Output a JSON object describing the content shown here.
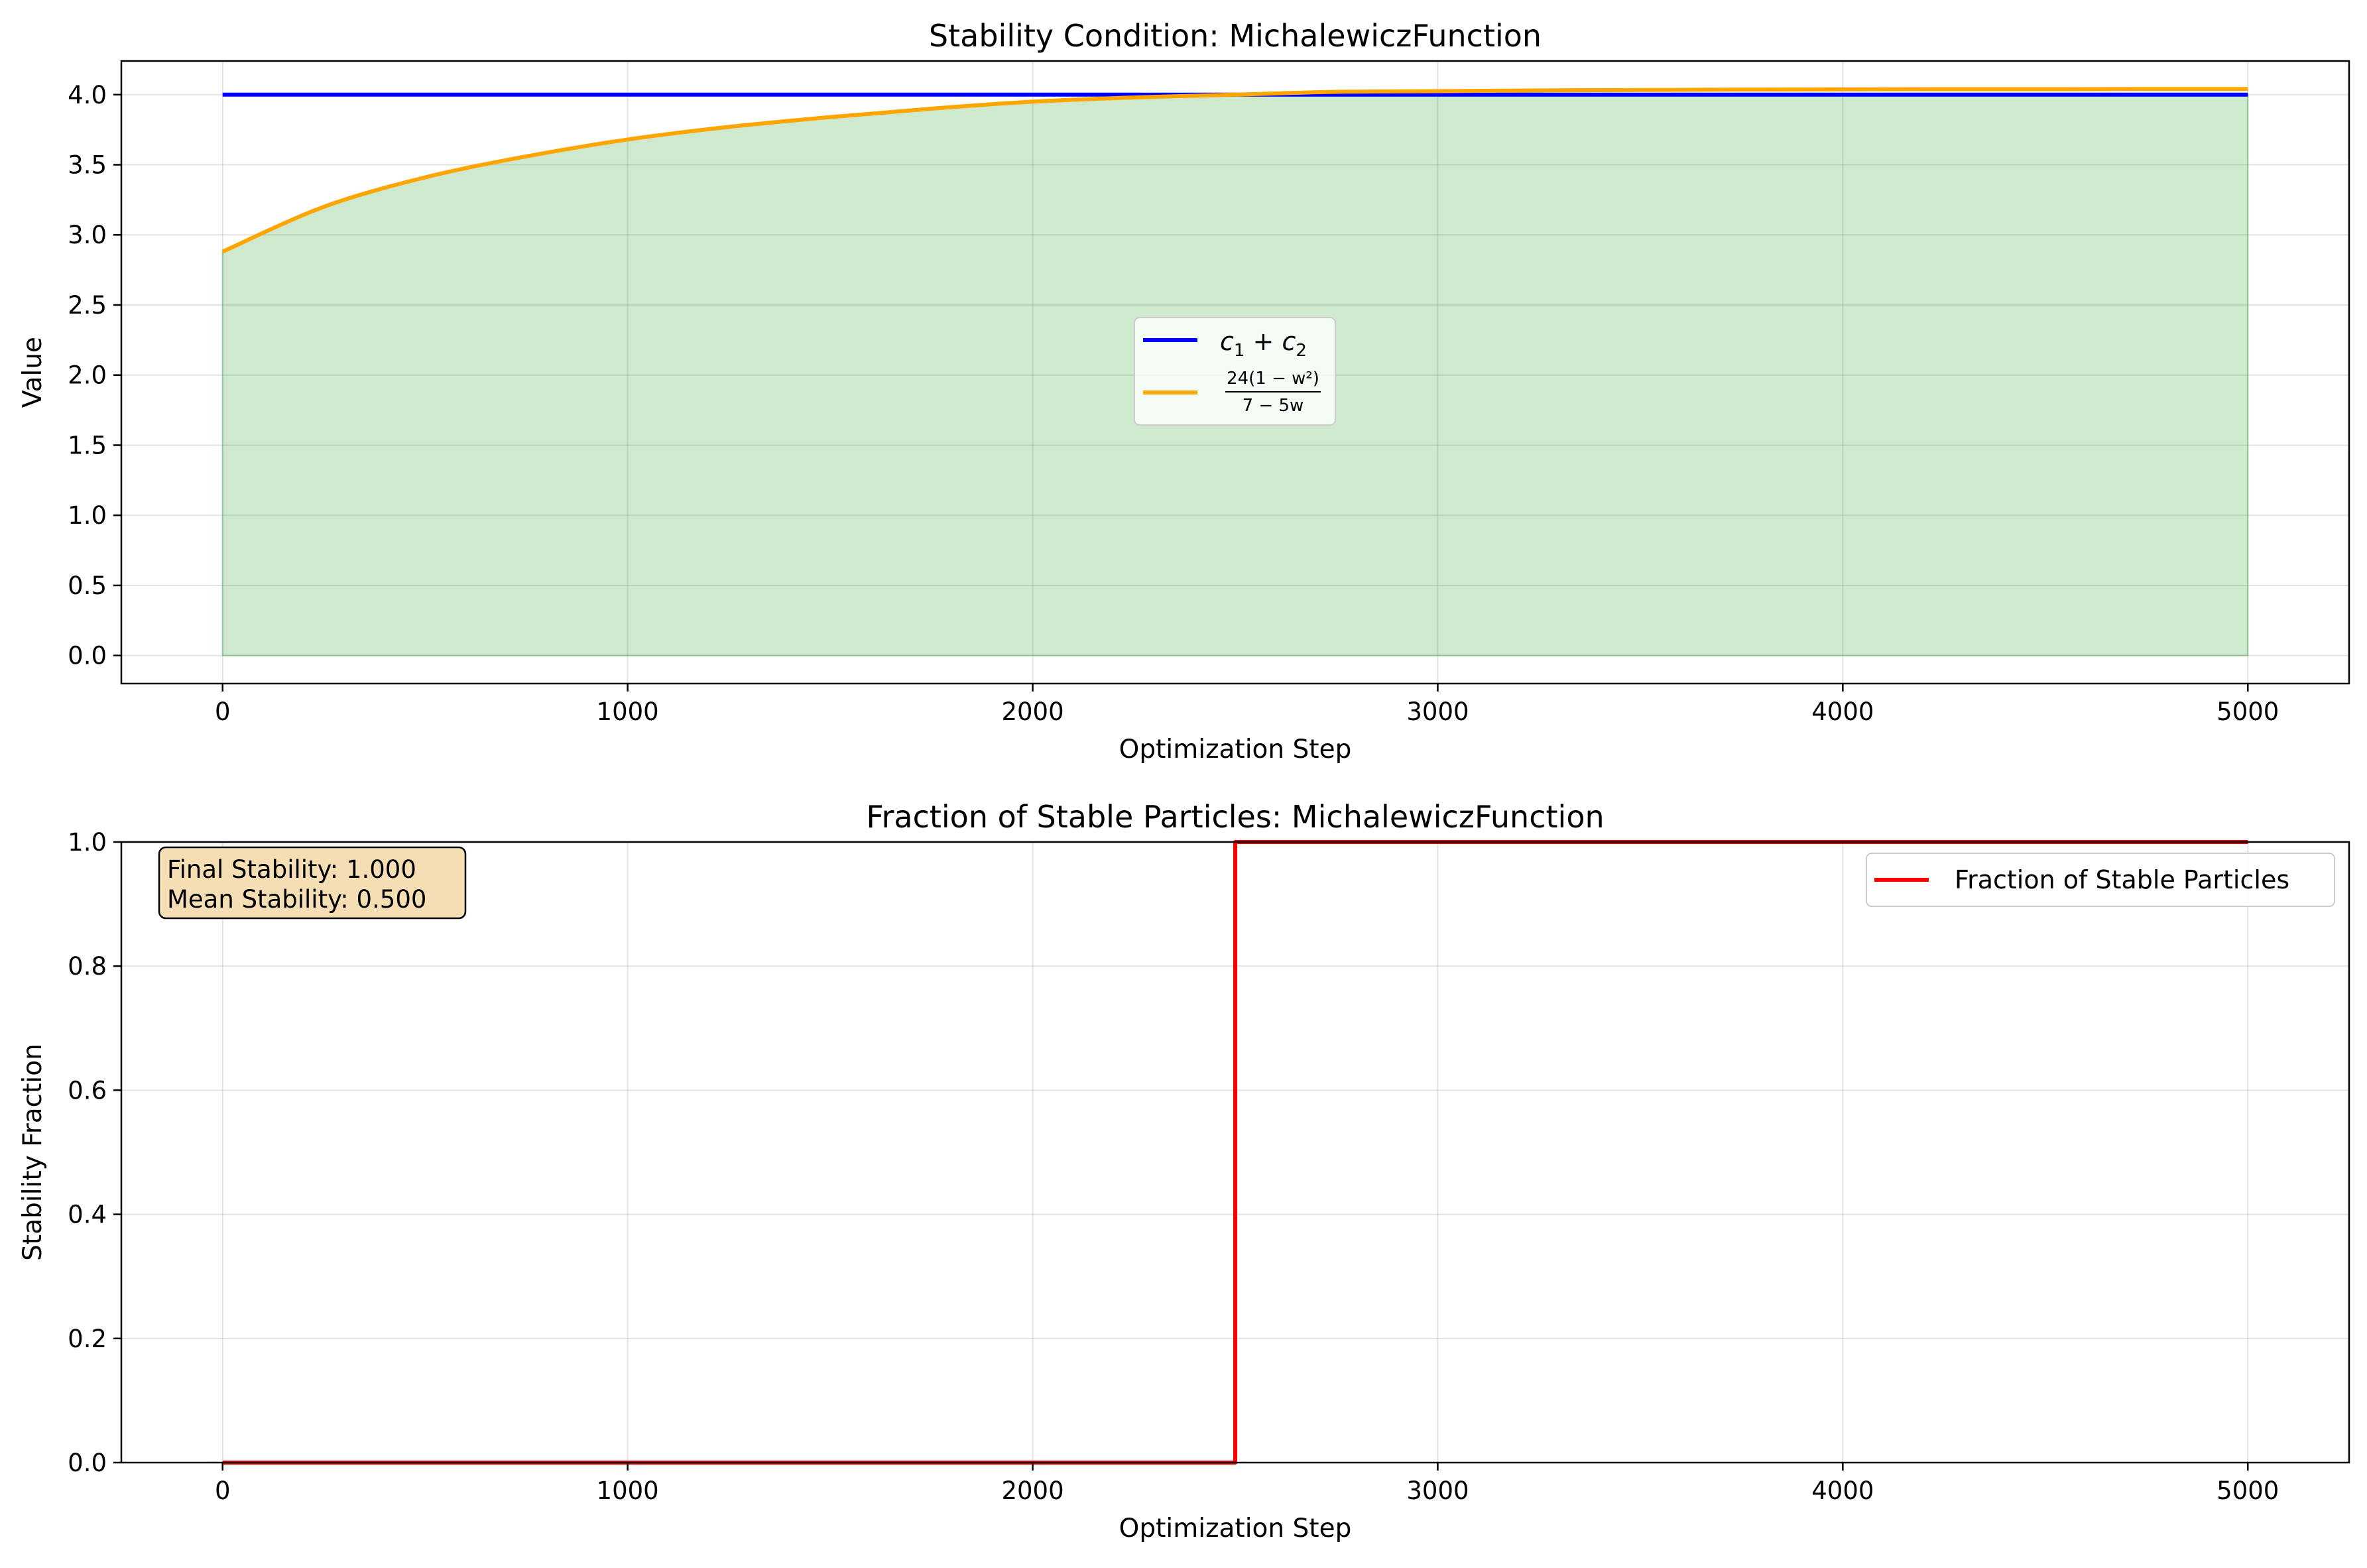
{
  "chart_data": [
    {
      "type": "line",
      "title": "Stability Condition: MichalewiczFunction",
      "xlabel": "Optimization Step",
      "ylabel": "Value",
      "xlim": [
        -250,
        5250
      ],
      "ylim": [
        -0.2,
        4.24
      ],
      "xticks": [
        0,
        1000,
        2000,
        3000,
        4000,
        5000
      ],
      "yticks": [
        0.0,
        0.5,
        1.0,
        1.5,
        2.0,
        2.5,
        3.0,
        3.5,
        4.0
      ],
      "ytick_decimals": 1,
      "grid": true,
      "legend_placement": "center",
      "series": [
        {
          "name": "c1 + c2",
          "legend_label": {
            "main": "c",
            "sub1": "1",
            "op": " + ",
            "main2": "c",
            "sub2": "2"
          },
          "color": "#0000ff",
          "x": [
            0,
            5000
          ],
          "y": [
            4.0,
            4.0
          ]
        },
        {
          "name": "24(1 − w²) / (7 − 5w)",
          "legend_label": {
            "numerator": "24(1 − w²)",
            "denominator": "7 − 5w"
          },
          "color": "#ffa500",
          "x": [
            0,
            250,
            500,
            750,
            1000,
            1250,
            1500,
            1750,
            2000,
            2250,
            2500,
            2750,
            3000,
            3250,
            3500,
            3750,
            4000,
            4250,
            4500,
            4750,
            5000
          ],
          "y": [
            2.88,
            3.2,
            3.41,
            3.56,
            3.68,
            3.77,
            3.84,
            3.9,
            3.95,
            3.98,
            4.0,
            4.02,
            4.025,
            4.03,
            4.033,
            4.036,
            4.038,
            4.039,
            4.039,
            4.04,
            4.04
          ]
        }
      ],
      "fill": {
        "color": "#2ca02c",
        "opacity": 0.23,
        "x": [
          0,
          5000
        ],
        "between": "min of series and 0"
      }
    },
    {
      "type": "line",
      "title": "Fraction of Stable Particles: MichalewiczFunction",
      "xlabel": "Optimization Step",
      "ylabel": "Stability Fraction",
      "xlim": [
        -250,
        5250
      ],
      "ylim": [
        0.0,
        1.0
      ],
      "xticks": [
        0,
        1000,
        2000,
        3000,
        4000,
        5000
      ],
      "yticks": [
        0.0,
        0.2,
        0.4,
        0.6,
        0.8,
        1.0
      ],
      "ytick_decimals": 1,
      "grid": true,
      "legend_placement": "top-right",
      "series": [
        {
          "name": "Fraction of Stable Particles",
          "color": "#ff0000",
          "x": [
            0,
            2500,
            2500,
            5000
          ],
          "y": [
            0.0,
            0.0,
            1.0,
            1.0
          ]
        }
      ],
      "annotation": {
        "lines": [
          "Final Stability: 1.000",
          "Mean Stability: 0.500"
        ],
        "placement": "top-left",
        "box_color": "#f5deb3"
      }
    }
  ]
}
